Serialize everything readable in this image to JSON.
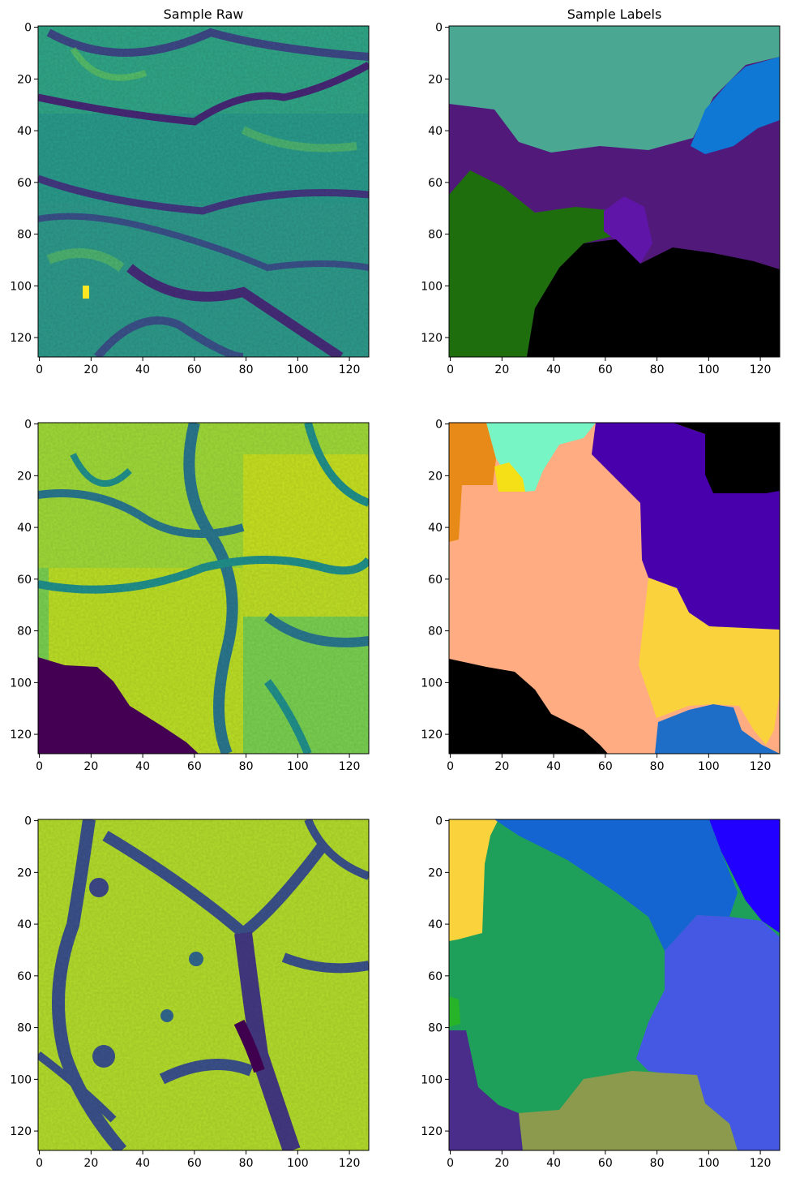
{
  "figure": {
    "column_titles": [
      "Sample Raw",
      "Sample Labels"
    ],
    "x_ticks": [
      "0",
      "20",
      "40",
      "60",
      "80",
      "100",
      "120"
    ],
    "y_ticks": [
      "0",
      "20",
      "40",
      "60",
      "80",
      "100",
      "120"
    ]
  },
  "colors": {
    "viridis_dark": "#440154",
    "viridis_blue": "#3b528b",
    "viridis_teal": "#21918c",
    "viridis_green": "#5ec962",
    "viridis_yellow": "#fde725"
  },
  "rows": [
    {
      "raw_palette": [
        "#2e6f8e",
        "#23898e",
        "#35b779",
        "#6ece58"
      ],
      "labels": [
        {
          "color": "#4aa892"
        },
        {
          "color": "#0e78d4"
        },
        {
          "color": "#511a7a"
        },
        {
          "color": "#1e6e0e"
        },
        {
          "color": "#5e15a8"
        },
        {
          "color": "#000000"
        }
      ]
    },
    {
      "raw_palette": [
        "#5ec962",
        "#b5de2b",
        "#21918c",
        "#440154"
      ],
      "labels": [
        {
          "color": "#e88a18"
        },
        {
          "color": "#78f5c4"
        },
        {
          "color": "#f5e018"
        },
        {
          "color": "#ffac82"
        },
        {
          "color": "#4800ac"
        },
        {
          "color": "#000000"
        },
        {
          "color": "#fad23c"
        },
        {
          "color": "#1e6ec8"
        }
      ]
    },
    {
      "raw_palette": [
        "#b5de2b",
        "#5ec962",
        "#3b528b",
        "#443983"
      ],
      "labels": [
        {
          "color": "#fad23c"
        },
        {
          "color": "#1464d2"
        },
        {
          "color": "#2200ff"
        },
        {
          "color": "#1ea05a"
        },
        {
          "color": "#4458e4"
        },
        {
          "color": "#4a2c8a"
        },
        {
          "color": "#8c9a4e"
        },
        {
          "color": "#28b428"
        }
      ]
    }
  ]
}
